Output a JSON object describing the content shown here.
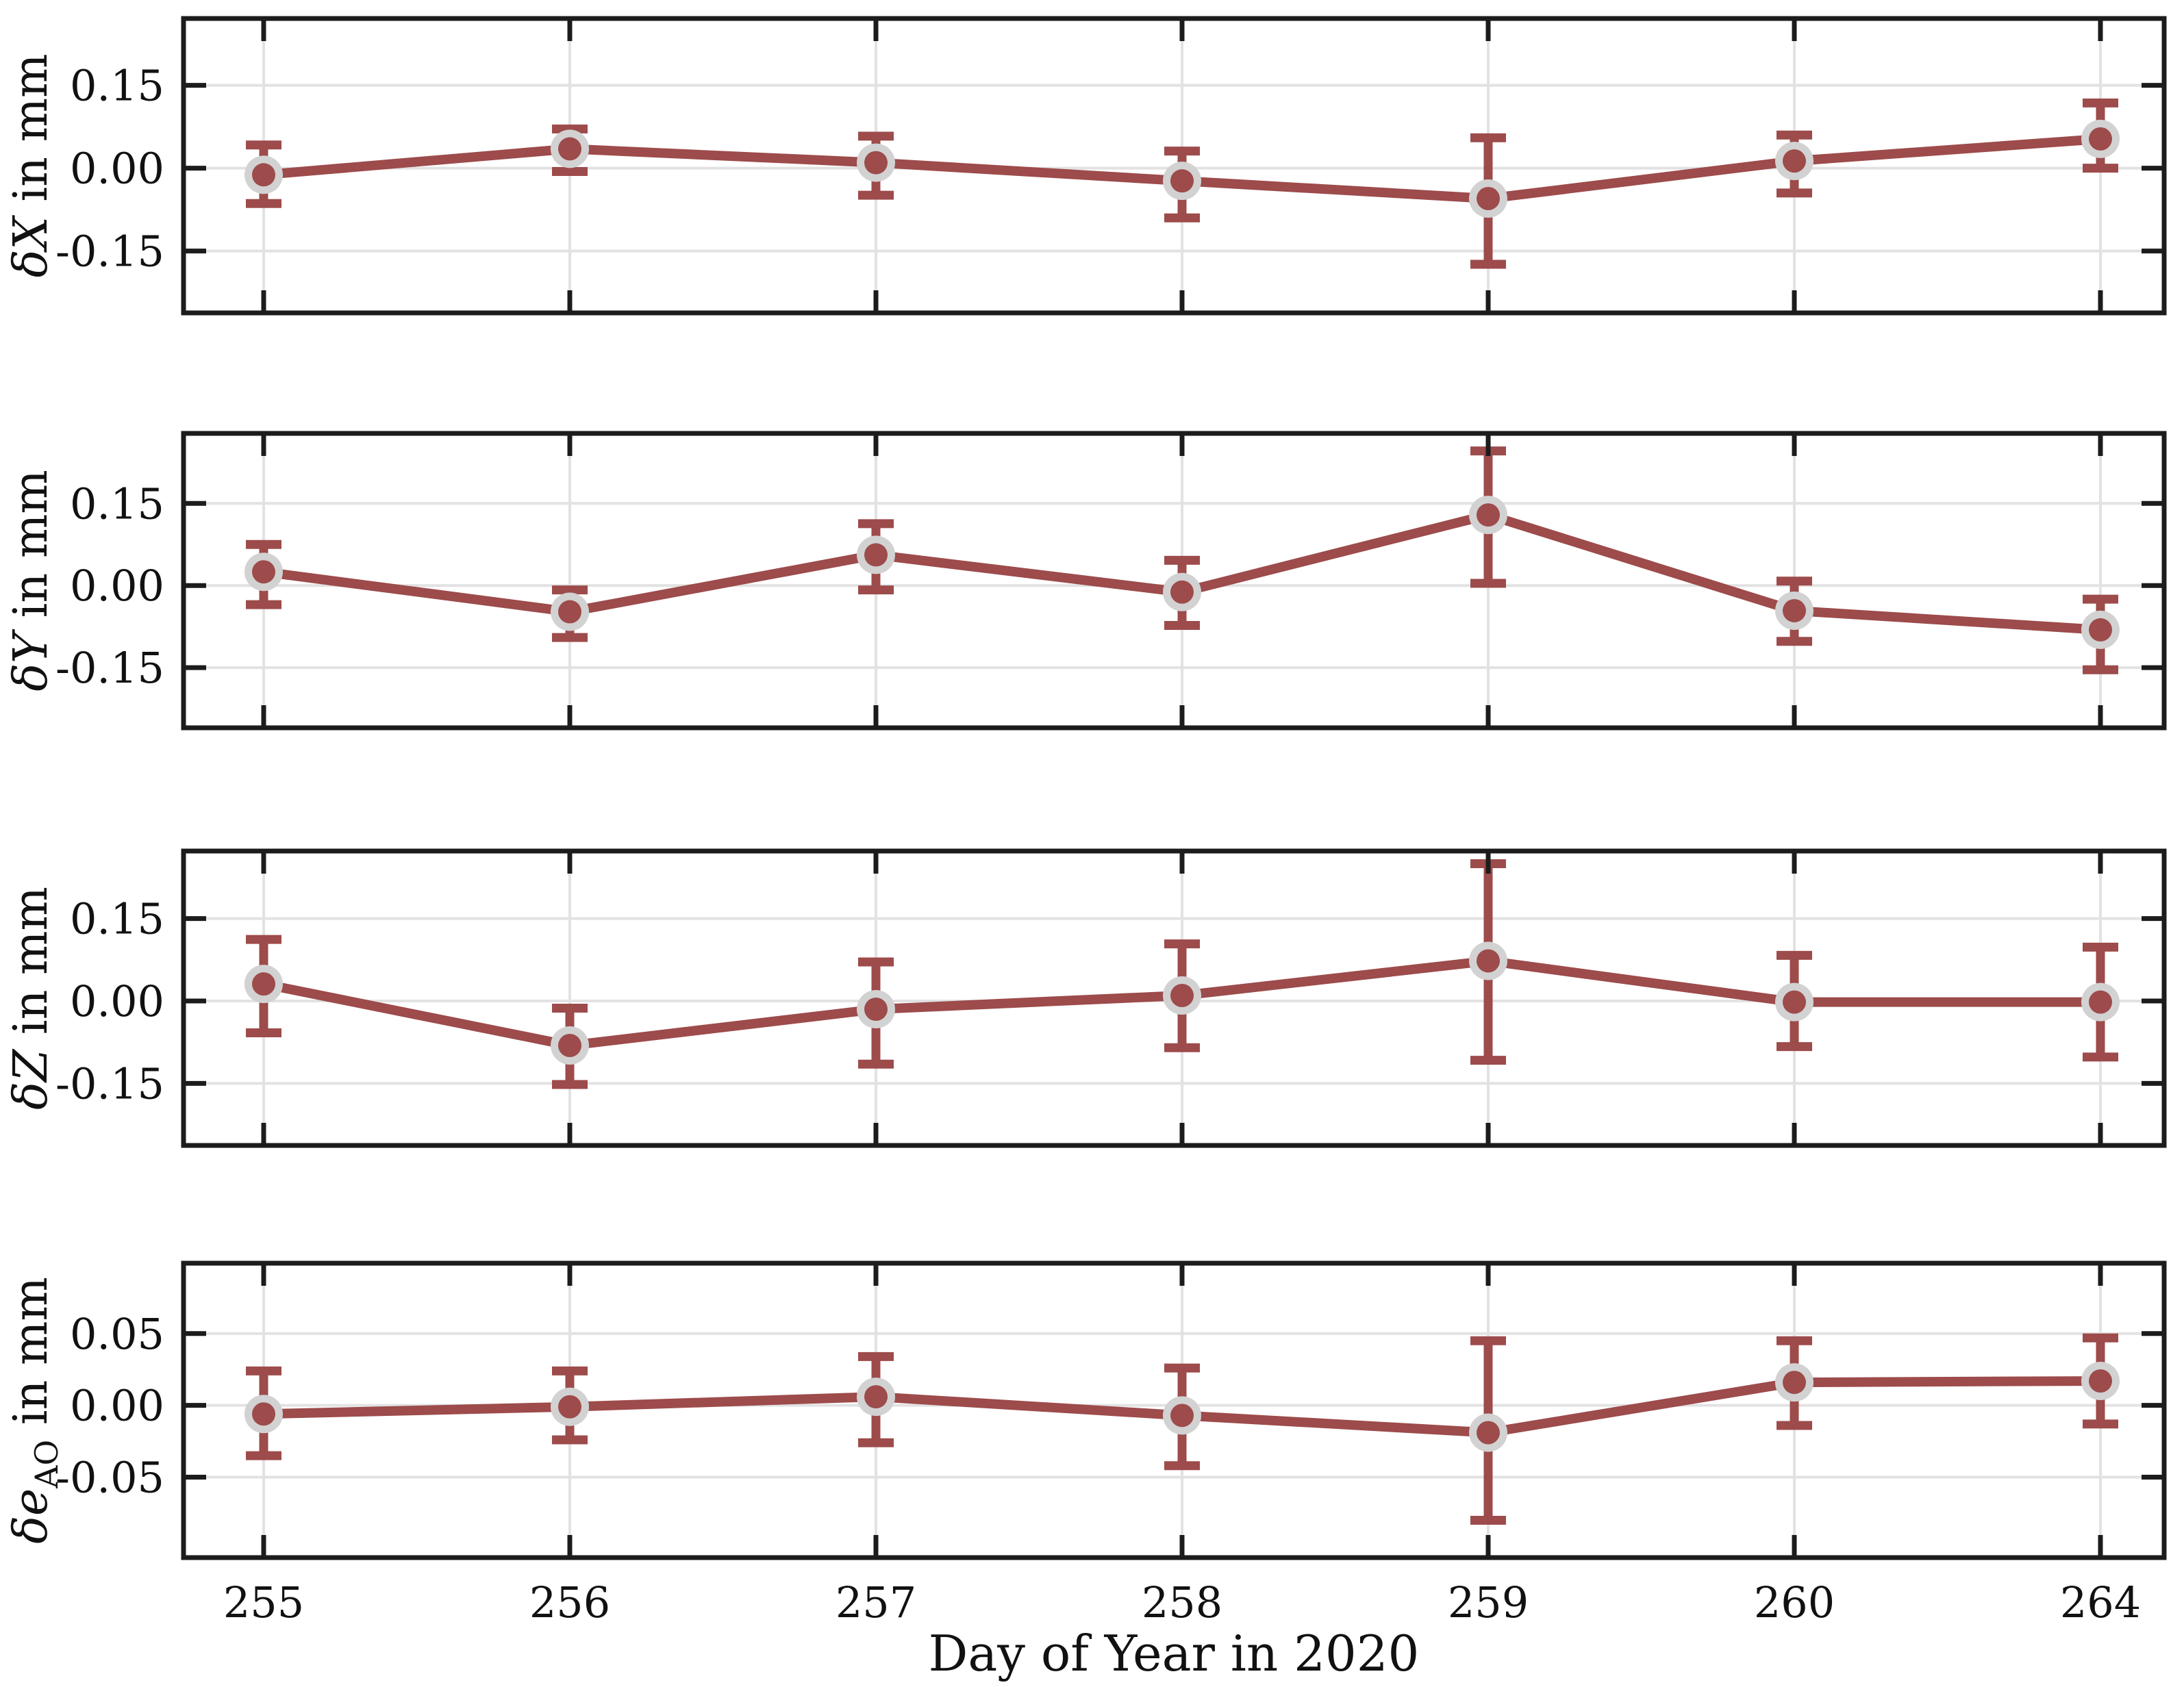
{
  "figure": {
    "xlabel": "Day of Year in 2020",
    "background": "#ffffff",
    "accent_color": "#9d4b4b",
    "marker_ring_color": "#d2d2d2",
    "grid_color": "#e2e2e2",
    "spine_color": "#1c1c1c",
    "text_color": "#111111",
    "x_tick_labels": [
      "255",
      "256",
      "257",
      "258",
      "259",
      "260",
      "264"
    ]
  },
  "chart_data": [
    {
      "type": "line",
      "ylabel": "δX in mm",
      "ylabel_symbol": "δX",
      "ylabel_subscript": "",
      "ylabel_suffix": " in mm",
      "x": [
        255,
        256,
        257,
        258,
        259,
        260,
        264
      ],
      "x_labels": [
        "255",
        "256",
        "257",
        "258",
        "259",
        "260",
        "264"
      ],
      "values": [
        -0.012,
        0.035,
        0.01,
        -0.023,
        -0.055,
        0.013,
        0.053
      ],
      "err_low": [
        -0.064,
        -0.006,
        -0.049,
        -0.09,
        -0.174,
        -0.045,
        0.0
      ],
      "err_high": [
        0.042,
        0.071,
        0.058,
        0.031,
        0.055,
        0.06,
        0.118
      ],
      "yticks": [
        0.15,
        0.0,
        -0.15
      ],
      "ytick_labels": [
        "0.15",
        "0.00",
        "-0.15"
      ],
      "ylim": [
        -0.262,
        0.271
      ],
      "grid": true
    },
    {
      "type": "line",
      "ylabel": "δY in mm",
      "ylabel_symbol": "δY",
      "ylabel_subscript": "",
      "ylabel_suffix": " in mm",
      "x": [
        255,
        256,
        257,
        258,
        259,
        260,
        264
      ],
      "x_labels": [
        "255",
        "256",
        "257",
        "258",
        "259",
        "260",
        "264"
      ],
      "values": [
        0.025,
        -0.048,
        0.056,
        -0.012,
        0.129,
        -0.046,
        -0.081
      ],
      "err_low": [
        -0.035,
        -0.095,
        -0.008,
        -0.073,
        0.004,
        -0.102,
        -0.154
      ],
      "err_high": [
        0.075,
        -0.008,
        0.113,
        0.046,
        0.246,
        0.008,
        -0.025
      ],
      "yticks": [
        0.15,
        0.0,
        -0.15
      ],
      "ytick_labels": [
        "0.15",
        "0.00",
        "-0.15"
      ],
      "ylim": [
        -0.26,
        0.278
      ],
      "grid": true
    },
    {
      "type": "line",
      "ylabel": "δZ in mm",
      "ylabel_symbol": "δZ",
      "ylabel_subscript": "",
      "ylabel_suffix": " in mm",
      "x": [
        255,
        256,
        257,
        258,
        259,
        260,
        264
      ],
      "x_labels": [
        "255",
        "256",
        "257",
        "258",
        "259",
        "260",
        "264"
      ],
      "values": [
        0.031,
        -0.081,
        -0.015,
        0.01,
        0.073,
        -0.002,
        -0.002
      ],
      "err_low": [
        -0.058,
        -0.152,
        -0.115,
        -0.085,
        -0.108,
        -0.083,
        -0.102
      ],
      "err_high": [
        0.112,
        -0.013,
        0.071,
        0.104,
        0.25,
        0.083,
        0.098
      ],
      "yticks": [
        0.15,
        0.0,
        -0.15
      ],
      "ytick_labels": [
        "0.15",
        "0.00",
        "-0.15"
      ],
      "ylim": [
        -0.263,
        0.273
      ],
      "grid": true
    },
    {
      "type": "line",
      "ylabel": "δe_AO in mm",
      "ylabel_symbol": "δe",
      "ylabel_subscript": "AO",
      "ylabel_suffix": " in mm",
      "x": [
        255,
        256,
        257,
        258,
        259,
        260,
        264
      ],
      "x_labels": [
        "255",
        "256",
        "257",
        "258",
        "259",
        "260",
        "264"
      ],
      "values": [
        -0.006,
        -0.001,
        0.006,
        -0.007,
        -0.019,
        0.016,
        0.017
      ],
      "err_low": [
        -0.035,
        -0.024,
        -0.026,
        -0.042,
        -0.08,
        -0.014,
        -0.013
      ],
      "err_high": [
        0.024,
        0.024,
        0.034,
        0.026,
        0.045,
        0.045,
        0.047
      ],
      "yticks": [
        0.05,
        0.0,
        -0.05
      ],
      "ytick_labels": [
        "0.05",
        "0.00",
        "-0.05"
      ],
      "ylim": [
        -0.106,
        0.099
      ],
      "grid": true
    }
  ]
}
